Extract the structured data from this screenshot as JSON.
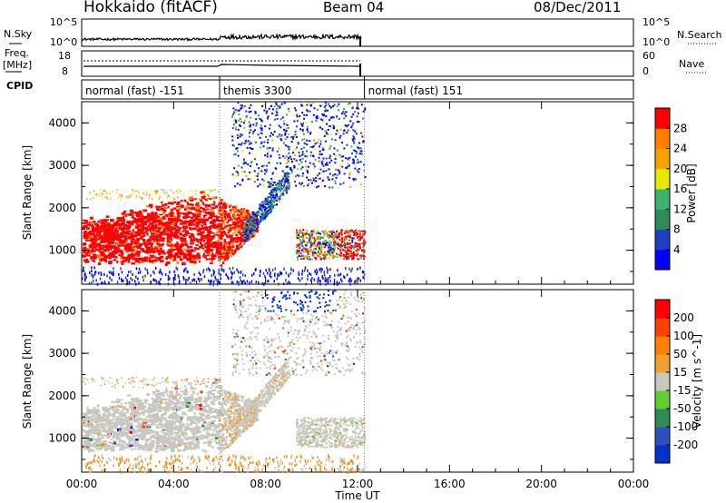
{
  "header": {
    "title": "Hokkaido (fitACF)",
    "beam": "Beam 04",
    "date": "08/Dec/2011"
  },
  "noise_panel": {
    "left_label": "N.Sky",
    "right_label": "N.Search",
    "left_ticks": [
      "10^5",
      "10^0"
    ],
    "right_ticks": [
      "10^5",
      "10^0"
    ]
  },
  "freq_panel": {
    "left_label_line1": "Freq.",
    "left_label_line2": "[MHz]",
    "right_label": "Nave",
    "left_ticks": [
      "18",
      "8"
    ],
    "right_ticks": [
      "60",
      "0"
    ]
  },
  "cpid": {
    "label": "CPID",
    "segments": [
      {
        "label": "normal (fast) -151",
        "start_hour": 0,
        "end_hour": 6
      },
      {
        "label": "themis 3300",
        "start_hour": 6,
        "end_hour": 12.3
      },
      {
        "label": "normal (fast) 151",
        "start_hour": 12.3,
        "end_hour": 24
      }
    ]
  },
  "colors": {
    "power": [
      "#0000ff",
      "#1f3fbf",
      "#2e8b57",
      "#3cb371",
      "#e8e800",
      "#f5a300",
      "#ff7f00",
      "#ff0000"
    ],
    "velocity": [
      "#0033cc",
      "#2f4fbf",
      "#2e8b57",
      "#66cc33",
      "#c8c8c0",
      "#f0a030",
      "#ff8000",
      "#ff4000",
      "#ff0000"
    ]
  },
  "chart_data": [
    {
      "type": "heatmap",
      "name": "power",
      "ylabel": "Slant Range [km]",
      "colorbar_label": "Power [dB]",
      "colorbar_ticks": [
        "28",
        "24",
        "20",
        "16",
        "12",
        "8",
        "4"
      ],
      "yticks": [
        "1000",
        "2000",
        "3000",
        "4000"
      ],
      "ylim": [
        200,
        4500
      ],
      "xlim": [
        0,
        24
      ],
      "regions": [
        {
          "x": [
            0,
            6
          ],
          "y": [
            700,
            2300
          ],
          "level": "high"
        },
        {
          "x": [
            6,
            7.5
          ],
          "y": [
            600,
            2200
          ],
          "level": "high"
        },
        {
          "x": [
            6.5,
            12.3
          ],
          "y": [
            2400,
            4500
          ],
          "level": "low-mid"
        },
        {
          "x": [
            9.5,
            12.3
          ],
          "y": [
            800,
            1500
          ],
          "level": "mixed"
        }
      ]
    },
    {
      "type": "heatmap",
      "name": "velocity",
      "ylabel": "Slant Range [km]",
      "colorbar_label": "Velocity [m s^-1]",
      "colorbar_ticks": [
        "200",
        "100",
        "50",
        "15",
        "-15",
        "-50",
        "-100",
        "-200"
      ],
      "yticks": [
        "1000",
        "2000",
        "3000",
        "4000"
      ],
      "ylim": [
        200,
        4500
      ],
      "xlim": [
        0,
        24
      ],
      "regions": [
        {
          "x": [
            0,
            12.3
          ],
          "y": [
            700,
            2300
          ],
          "level": "near-zero"
        },
        {
          "x": [
            8,
            10.8
          ],
          "y": [
            4000,
            4500
          ],
          "level": "positive-high"
        }
      ]
    }
  ],
  "xaxis": {
    "label": "Time UT",
    "ticks": [
      "00:00",
      "04:00",
      "08:00",
      "12:00",
      "16:00",
      "20:00",
      "00:00"
    ]
  }
}
